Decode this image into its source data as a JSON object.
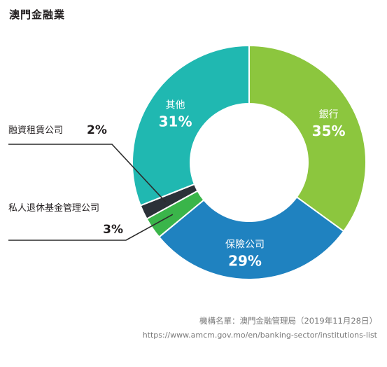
{
  "title": "澳門金融業",
  "chart_data": {
    "type": "pie",
    "donut": true,
    "categories": [
      "銀行",
      "保險公司",
      "私人退休基金管理公司",
      "融資租賃公司",
      "其他"
    ],
    "values": [
      35,
      29,
      3,
      2,
      31
    ],
    "labels": [
      "35%",
      "29%",
      "3%",
      "2%",
      "31%"
    ],
    "colors": [
      "#8cc63e",
      "#1f82c0",
      "#3ab54a",
      "#2b3138",
      "#20b8b1"
    ],
    "legend": "none"
  },
  "source": {
    "line1": "機構名單：澳門金融管理局（2019年11月28日）",
    "line2": "https://www.amcm.gov.mo/en/banking-sector/institutions-list"
  }
}
